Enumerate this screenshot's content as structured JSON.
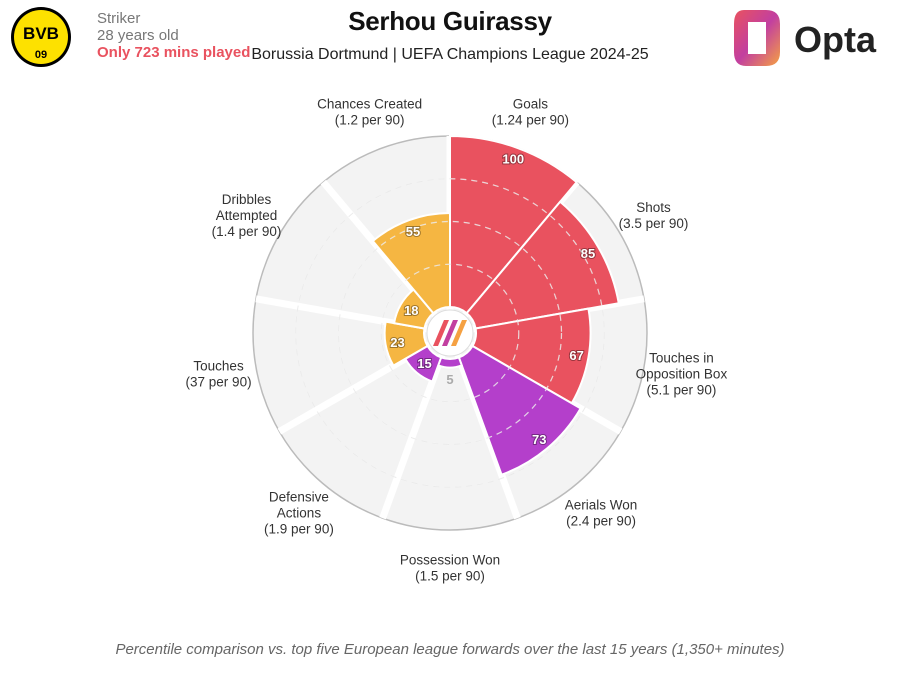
{
  "player": {
    "name": "Serhou Guirassy",
    "subtitle": "Borussia Dortmund | UEFA Champions League 2024-25",
    "position": "Striker",
    "age": "28 years old",
    "minutes_note": "Only 723 mins played"
  },
  "club_badge": {
    "text_top": "BVB",
    "text_bottom": "09",
    "color_bg": "#fde100",
    "color_fg": "#000000"
  },
  "brand": {
    "name": "Opta"
  },
  "footer": "Percentile comparison vs. top five European league forwards over the last 15 years (1,350+ minutes)",
  "colors": {
    "attacking": "#e9525f",
    "aerial": "#b43fcb",
    "possession": "#f5b642"
  },
  "chart_data": {
    "type": "polar-bar",
    "scale": [
      0,
      100
    ],
    "categories": [
      {
        "label": [
          "Goals",
          "(1.24 per 90)"
        ],
        "value": 100,
        "group": "attacking"
      },
      {
        "label": [
          "Shots",
          "(3.5 per 90)"
        ],
        "value": 85,
        "group": "attacking"
      },
      {
        "label": [
          "Touches in",
          "Opposition Box",
          "(5.1 per 90)"
        ],
        "value": 67,
        "group": "attacking"
      },
      {
        "label": [
          "Aerials Won",
          "(2.4 per 90)"
        ],
        "value": 73,
        "group": "aerial"
      },
      {
        "label": [
          "Possession Won",
          "(1.5 per 90)"
        ],
        "value": 5,
        "group": "aerial"
      },
      {
        "label": [
          "Defensive",
          "Actions",
          "(1.9 per 90)"
        ],
        "value": 15,
        "group": "aerial"
      },
      {
        "label": [
          "Touches",
          "(37 per 90)"
        ],
        "value": 23,
        "group": "possession"
      },
      {
        "label": [
          "Dribbles",
          "Attempted",
          "(1.4 per 90)"
        ],
        "value": 18,
        "group": "possession"
      },
      {
        "label": [
          "Chances Created",
          "(1.2 per 90)"
        ],
        "value": 55,
        "group": "possession"
      }
    ]
  }
}
